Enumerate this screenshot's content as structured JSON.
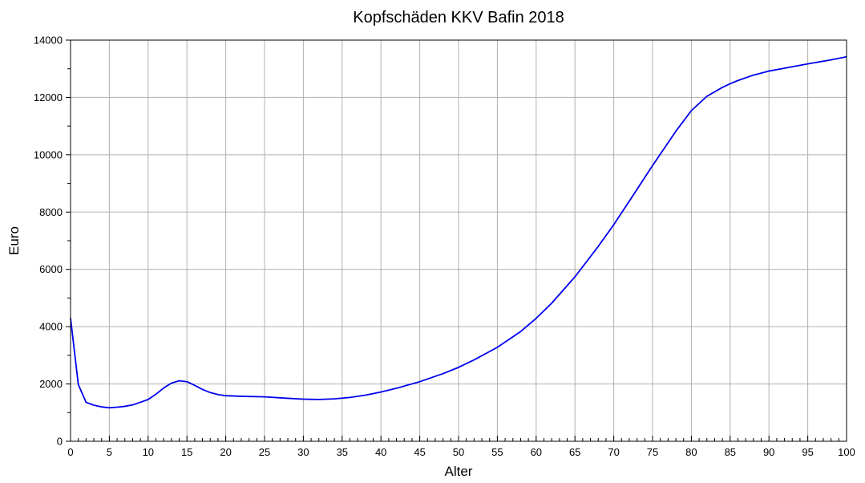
{
  "chart_data": {
    "type": "line",
    "title": "Kopfschäden KKV Bafin 2018",
    "xlabel": "Alter",
    "ylabel": "Euro",
    "xlim": [
      0,
      100
    ],
    "ylim": [
      0,
      14000
    ],
    "xticks": [
      0,
      5,
      10,
      15,
      20,
      25,
      30,
      35,
      40,
      45,
      50,
      55,
      60,
      65,
      70,
      75,
      80,
      85,
      90,
      95,
      100
    ],
    "xtick_labels": [
      "0",
      "5",
      "10",
      "15",
      "20",
      "25",
      "30",
      "35",
      "40",
      "45",
      "50",
      "55",
      "60",
      "65",
      "70",
      "75",
      "80",
      "85",
      "90",
      "95",
      "100"
    ],
    "yticks": [
      0,
      2000,
      4000,
      6000,
      8000,
      10000,
      12000,
      14000
    ],
    "ytick_labels": [
      "0",
      "2000",
      "4000",
      "6000",
      "8000",
      "10000",
      "12000",
      "14000"
    ],
    "grid": true,
    "color": "#0000ee",
    "series": [
      {
        "x": [
          0,
          1,
          2,
          3,
          4,
          5,
          6,
          7,
          8,
          9,
          10,
          11,
          12,
          13,
          14,
          15,
          16,
          17,
          18,
          19,
          20,
          22,
          25,
          28,
          30,
          32,
          34,
          36,
          38,
          40,
          42,
          45,
          48,
          50,
          52,
          55,
          58,
          60,
          62,
          65,
          68,
          70,
          72,
          75,
          78,
          80,
          82,
          84,
          85,
          86,
          88,
          90,
          92,
          95,
          98,
          100
        ],
        "values": [
          4300,
          1980,
          1360,
          1260,
          1200,
          1170,
          1190,
          1220,
          1270,
          1360,
          1460,
          1640,
          1860,
          2030,
          2110,
          2080,
          1950,
          1810,
          1700,
          1630,
          1590,
          1570,
          1550,
          1500,
          1470,
          1460,
          1480,
          1530,
          1610,
          1720,
          1850,
          2080,
          2360,
          2580,
          2840,
          3280,
          3830,
          4290,
          4820,
          5740,
          6800,
          7560,
          8380,
          9620,
          10820,
          11540,
          12040,
          12350,
          12480,
          12590,
          12780,
          12920,
          13020,
          13170,
          13310,
          13420
        ]
      }
    ]
  }
}
